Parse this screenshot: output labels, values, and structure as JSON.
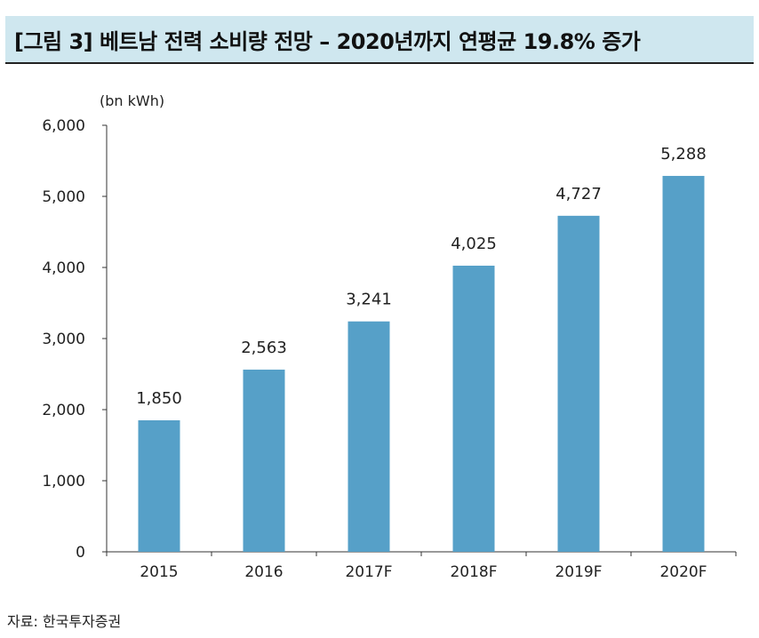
{
  "header": {
    "title": "[그림 3] 베트남 전력 소비량 전망 – 2020년까지 연평균 19.8% 증가"
  },
  "footer": {
    "source": "자료: 한국투자증권"
  },
  "chart_data": {
    "type": "bar",
    "unit_label": "(bn kWh)",
    "categories": [
      "2015",
      "2016",
      "2017F",
      "2018F",
      "2019F",
      "2020F"
    ],
    "values": [
      1850,
      2563,
      3241,
      4025,
      4727,
      5288
    ],
    "value_labels": [
      "1,850",
      "2,563",
      "3,241",
      "4,025",
      "4,727",
      "5,288"
    ],
    "y_ticks": [
      0,
      1000,
      2000,
      3000,
      4000,
      5000,
      6000
    ],
    "y_tick_labels": [
      "0",
      "1,000",
      "2,000",
      "3,000",
      "4,000",
      "5,000",
      "6,000"
    ],
    "ylim": [
      0,
      6000
    ],
    "bar_color": "#56a0c8",
    "grid": false,
    "legend": "none"
  }
}
